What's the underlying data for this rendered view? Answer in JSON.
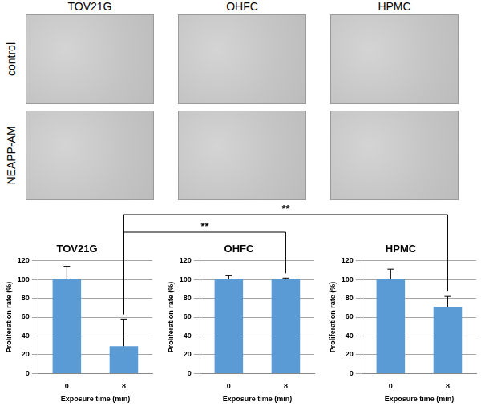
{
  "image_panel": {
    "columns": [
      "TOV21G",
      "OHFC",
      "HPMC"
    ],
    "rows": [
      "control",
      "NEAPP-AM"
    ]
  },
  "chart_data": [
    {
      "type": "bar",
      "title": "TOV21G",
      "categories": [
        "0",
        "8"
      ],
      "values": [
        100,
        29
      ],
      "errors": [
        14,
        29
      ],
      "color": "#5b9bd5",
      "xlabel": "Exposure time (min)",
      "ylabel": "Proliferation rate (%)",
      "ylim": [
        0,
        120
      ],
      "yticks": [
        0,
        20,
        40,
        60,
        80,
        100,
        120
      ],
      "grid": true
    },
    {
      "type": "bar",
      "title": "OHFC",
      "categories": [
        "0",
        "8"
      ],
      "values": [
        100,
        100
      ],
      "errors": [
        4,
        1.5
      ],
      "color": "#5b9bd5",
      "xlabel": "Exposure time (min)",
      "ylabel": "Proliferation rate (%)",
      "ylim": [
        0,
        120
      ],
      "yticks": [
        0,
        20,
        40,
        60,
        80,
        100,
        120
      ],
      "grid": true
    },
    {
      "type": "bar",
      "title": "HPMC",
      "categories": [
        "0",
        "8"
      ],
      "values": [
        100,
        71
      ],
      "errors": [
        11,
        11
      ],
      "color": "#5b9bd5",
      "xlabel": "Exposure time (min)",
      "ylabel": "Proliferation rate (%)",
      "ylim": [
        0,
        120
      ],
      "yticks": [
        0,
        20,
        40,
        60,
        80,
        100,
        120
      ],
      "grid": true
    }
  ],
  "comparisons": [
    {
      "from": "TOV21G",
      "to": "OHFC",
      "category": "8",
      "label": "**"
    },
    {
      "from": "TOV21G",
      "to": "HPMC",
      "category": "8",
      "label": "**"
    }
  ]
}
